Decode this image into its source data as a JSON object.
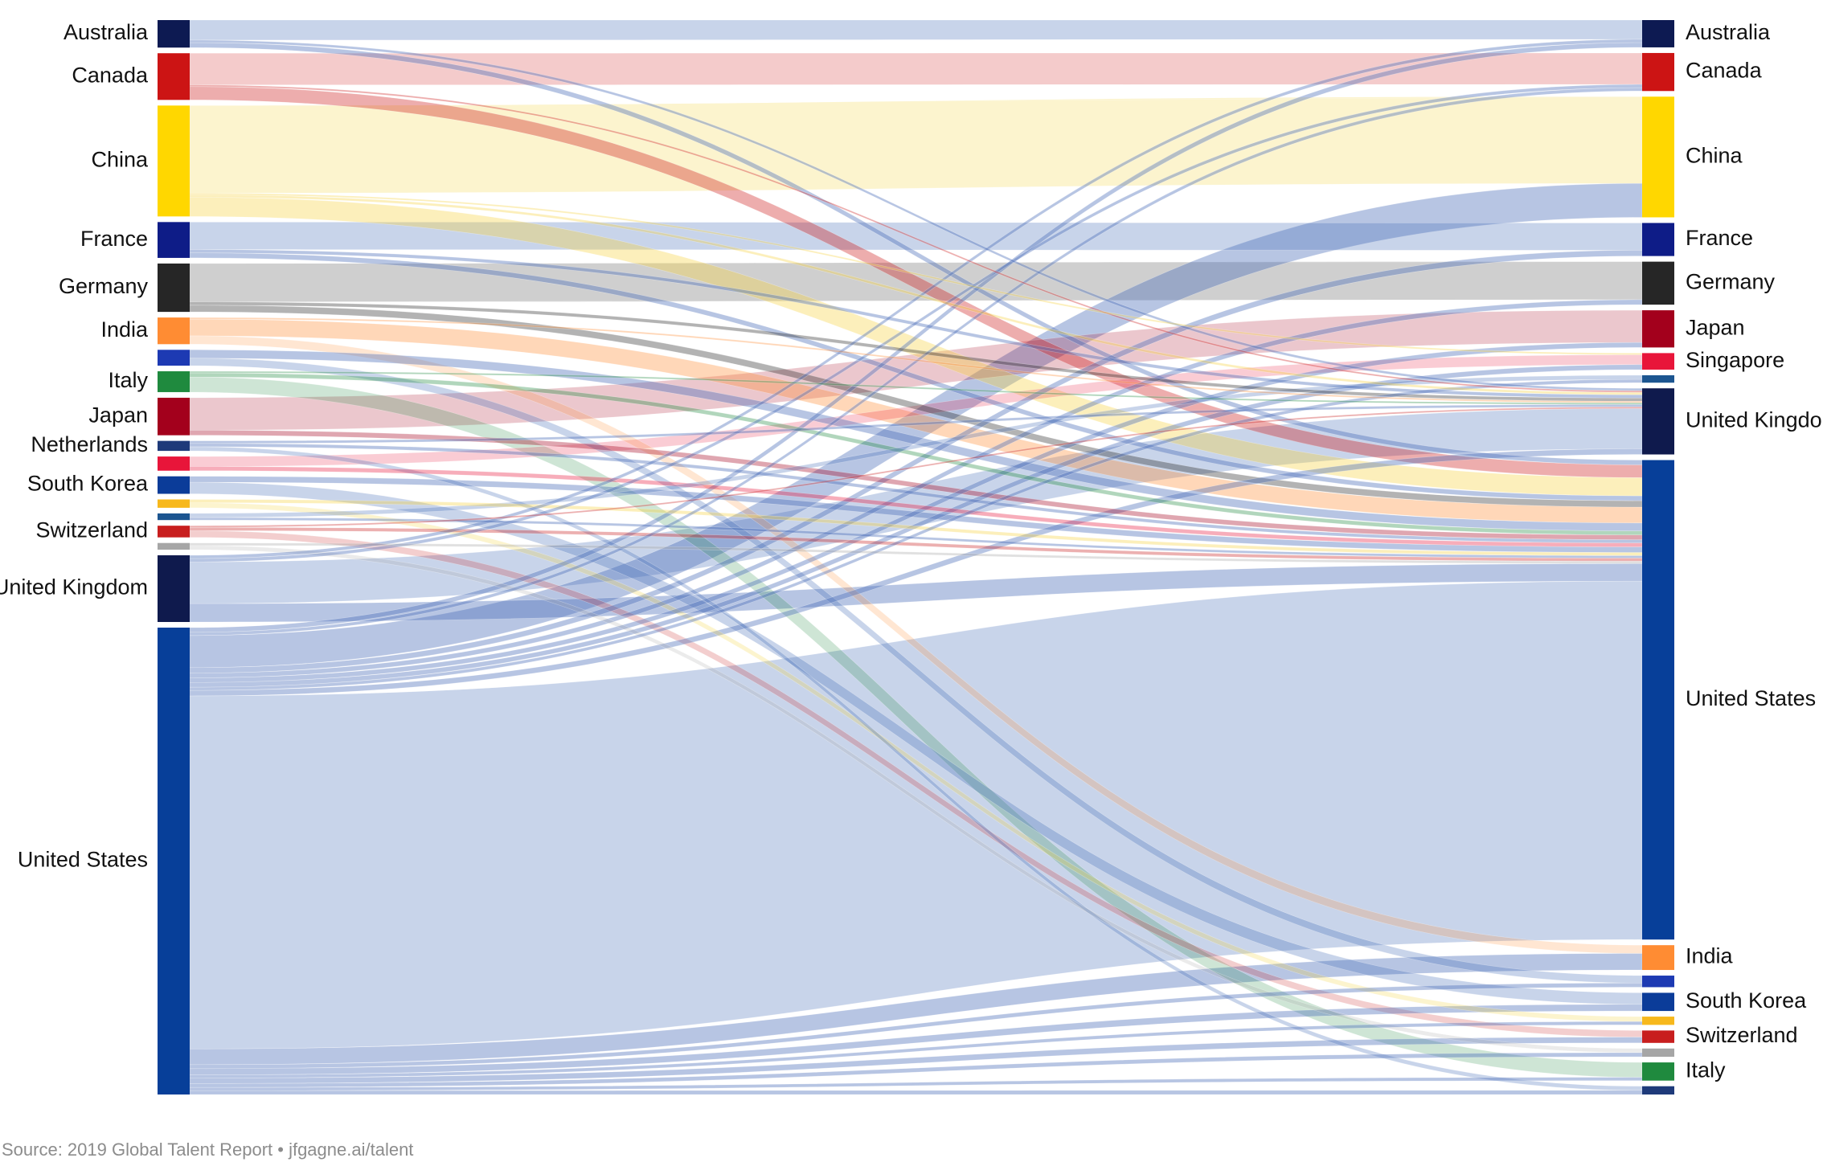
{
  "source_note": "Source: 2019 Global Talent Report • jfgagne.ai/talent",
  "diagram": {
    "type": "sankey",
    "left_nodes": [
      {
        "id": "L-australia",
        "label": "Australia",
        "value": 3.3,
        "color": "#0d1a52"
      },
      {
        "id": "L-canada",
        "label": "Canada",
        "value": 5.6,
        "color": "#cc1414"
      },
      {
        "id": "L-china",
        "label": "China",
        "value": 13.3,
        "color": "#ffd700"
      },
      {
        "id": "L-france",
        "label": "France",
        "value": 4.3,
        "color": "#0e1c87"
      },
      {
        "id": "L-germany",
        "label": "Germany",
        "value": 5.8,
        "color": "#262626"
      },
      {
        "id": "L-india",
        "label": "India",
        "value": 3.2,
        "color": "#ff8c33"
      },
      {
        "id": "L-blue1",
        "label": "",
        "value": 1.9,
        "color": "#1d3ab3"
      },
      {
        "id": "L-italy",
        "label": "Italy",
        "value": 2.5,
        "color": "#1f8a3e"
      },
      {
        "id": "L-japan",
        "label": "Japan",
        "value": 4.5,
        "color": "#a3001c"
      },
      {
        "id": "L-netherlands",
        "label": "Netherlands",
        "value": 1.2,
        "color": "#1e3a7a"
      },
      {
        "id": "L-singapore",
        "label": "",
        "value": 1.7,
        "color": "#e8153a"
      },
      {
        "id": "L-southkorea",
        "label": "South Korea",
        "value": 2.1,
        "color": "#0b3c99"
      },
      {
        "id": "L-yellow",
        "label": "",
        "value": 1.0,
        "color": "#f7b81c"
      },
      {
        "id": "L-blue2",
        "label": "",
        "value": 0.8,
        "color": "#1c5590"
      },
      {
        "id": "L-switzerland",
        "label": "Switzerland",
        "value": 1.4,
        "color": "#c81e1e"
      },
      {
        "id": "L-gray",
        "label": "",
        "value": 0.8,
        "color": "#a6a6a6"
      },
      {
        "id": "L-uk",
        "label": "United Kingdom",
        "value": 8.0,
        "color": "#0f1a4d"
      },
      {
        "id": "L-us",
        "label": "United States",
        "value": 56.0,
        "color": "#073f99"
      }
    ],
    "right_nodes": [
      {
        "id": "R-australia",
        "label": "Australia",
        "value": 3.3,
        "color": "#0d1a52"
      },
      {
        "id": "R-canada",
        "label": "Canada",
        "value": 4.6,
        "color": "#cc1414"
      },
      {
        "id": "R-china",
        "label": "China",
        "value": 14.6,
        "color": "#ffd700"
      },
      {
        "id": "R-france",
        "label": "France",
        "value": 4.0,
        "color": "#0e1c87"
      },
      {
        "id": "R-germany",
        "label": "Germany",
        "value": 5.2,
        "color": "#262626"
      },
      {
        "id": "R-japan",
        "label": "Japan",
        "value": 4.5,
        "color": "#a3001c"
      },
      {
        "id": "R-singapore",
        "label": "Singapore",
        "value": 2.0,
        "color": "#e8153a"
      },
      {
        "id": "R-blue2",
        "label": "",
        "value": 0.9,
        "color": "#1c5590"
      },
      {
        "id": "R-uk",
        "label": "United Kingdom",
        "value": 8.0,
        "color": "#0f1a4d"
      },
      {
        "id": "R-us",
        "label": "United States",
        "value": 58.0,
        "color": "#073f99"
      },
      {
        "id": "R-india",
        "label": "India",
        "value": 3.0,
        "color": "#ff8c33"
      },
      {
        "id": "R-blue1",
        "label": "",
        "value": 1.4,
        "color": "#1d3ab3"
      },
      {
        "id": "R-southkorea",
        "label": "South Korea",
        "value": 2.2,
        "color": "#0b3c99"
      },
      {
        "id": "R-yellow",
        "label": "",
        "value": 1.0,
        "color": "#f7b81c"
      },
      {
        "id": "R-switzerland",
        "label": "Switzerland",
        "value": 1.5,
        "color": "#c81e1e"
      },
      {
        "id": "R-gray",
        "label": "",
        "value": 1.0,
        "color": "#a6a6a6"
      },
      {
        "id": "R-italy",
        "label": "Italy",
        "value": 2.2,
        "color": "#1f8a3e"
      },
      {
        "id": "R-netherlands",
        "label": "",
        "value": 1.0,
        "color": "#1e3a7a"
      }
    ],
    "flows": [
      {
        "source": "L-australia",
        "target": "R-australia",
        "value": 2.4
      },
      {
        "source": "L-australia",
        "target": "R-us",
        "value": 0.6
      },
      {
        "source": "L-australia",
        "target": "R-uk",
        "value": 0.3
      },
      {
        "source": "L-canada",
        "target": "R-canada",
        "value": 3.8
      },
      {
        "source": "L-canada",
        "target": "R-us",
        "value": 1.6
      },
      {
        "source": "L-canada",
        "target": "R-uk",
        "value": 0.2
      },
      {
        "source": "L-china",
        "target": "R-china",
        "value": 10.5
      },
      {
        "source": "L-china",
        "target": "R-us",
        "value": 2.3
      },
      {
        "source": "L-china",
        "target": "R-uk",
        "value": 0.3
      },
      {
        "source": "L-china",
        "target": "R-singapore",
        "value": 0.2
      },
      {
        "source": "L-france",
        "target": "R-france",
        "value": 3.3
      },
      {
        "source": "L-france",
        "target": "R-us",
        "value": 0.6
      },
      {
        "source": "L-france",
        "target": "R-uk",
        "value": 0.4
      },
      {
        "source": "L-germany",
        "target": "R-germany",
        "value": 4.6
      },
      {
        "source": "L-germany",
        "target": "R-us",
        "value": 0.8
      },
      {
        "source": "L-germany",
        "target": "R-uk",
        "value": 0.4
      },
      {
        "source": "L-india",
        "target": "R-india",
        "value": 1.0
      },
      {
        "source": "L-india",
        "target": "R-us",
        "value": 2.0
      },
      {
        "source": "L-india",
        "target": "R-uk",
        "value": 0.2
      },
      {
        "source": "L-blue1",
        "target": "R-blue1",
        "value": 0.9
      },
      {
        "source": "L-blue1",
        "target": "R-us",
        "value": 1.0
      },
      {
        "source": "L-italy",
        "target": "R-italy",
        "value": 1.8
      },
      {
        "source": "L-italy",
        "target": "R-us",
        "value": 0.5
      },
      {
        "source": "L-italy",
        "target": "R-uk",
        "value": 0.2
      },
      {
        "source": "L-japan",
        "target": "R-japan",
        "value": 3.9
      },
      {
        "source": "L-japan",
        "target": "R-us",
        "value": 0.6
      },
      {
        "source": "L-netherlands",
        "target": "R-netherlands",
        "value": 0.5
      },
      {
        "source": "L-netherlands",
        "target": "R-us",
        "value": 0.4
      },
      {
        "source": "L-netherlands",
        "target": "R-uk",
        "value": 0.3
      },
      {
        "source": "L-singapore",
        "target": "R-singapore",
        "value": 1.2
      },
      {
        "source": "L-singapore",
        "target": "R-us",
        "value": 0.5
      },
      {
        "source": "L-southkorea",
        "target": "R-southkorea",
        "value": 1.4
      },
      {
        "source": "L-southkorea",
        "target": "R-us",
        "value": 0.7
      },
      {
        "source": "L-yellow",
        "target": "R-yellow",
        "value": 0.6
      },
      {
        "source": "L-yellow",
        "target": "R-us",
        "value": 0.4
      },
      {
        "source": "L-blue2",
        "target": "R-blue2",
        "value": 0.5
      },
      {
        "source": "L-blue2",
        "target": "R-us",
        "value": 0.3
      },
      {
        "source": "L-switzerland",
        "target": "R-switzerland",
        "value": 0.8
      },
      {
        "source": "L-switzerland",
        "target": "R-us",
        "value": 0.4
      },
      {
        "source": "L-switzerland",
        "target": "R-uk",
        "value": 0.2
      },
      {
        "source": "L-gray",
        "target": "R-gray",
        "value": 0.5
      },
      {
        "source": "L-gray",
        "target": "R-us",
        "value": 0.3
      },
      {
        "source": "L-uk",
        "target": "R-uk",
        "value": 5.0
      },
      {
        "source": "L-uk",
        "target": "R-us",
        "value": 2.2
      },
      {
        "source": "L-uk",
        "target": "R-australia",
        "value": 0.4
      },
      {
        "source": "L-uk",
        "target": "R-canada",
        "value": 0.4
      },
      {
        "source": "L-us",
        "target": "R-us",
        "value": 45.0
      },
      {
        "source": "L-us",
        "target": "R-china",
        "value": 4.1
      },
      {
        "source": "L-us",
        "target": "R-uk",
        "value": 0.7
      },
      {
        "source": "L-us",
        "target": "R-canada",
        "value": 0.4
      },
      {
        "source": "L-us",
        "target": "R-australia",
        "value": 0.6
      },
      {
        "source": "L-us",
        "target": "R-france",
        "value": 0.7
      },
      {
        "source": "L-us",
        "target": "R-germany",
        "value": 0.6
      },
      {
        "source": "L-us",
        "target": "R-japan",
        "value": 0.6
      },
      {
        "source": "L-us",
        "target": "R-singapore",
        "value": 0.6
      },
      {
        "source": "L-us",
        "target": "R-india",
        "value": 2.0
      },
      {
        "source": "L-us",
        "target": "R-blue1",
        "value": 0.5
      },
      {
        "source": "L-us",
        "target": "R-southkorea",
        "value": 0.8
      },
      {
        "source": "L-us",
        "target": "R-yellow",
        "value": 0.4
      },
      {
        "source": "L-us",
        "target": "R-blue2",
        "value": 0.4
      },
      {
        "source": "L-us",
        "target": "R-switzerland",
        "value": 0.7
      },
      {
        "source": "L-us",
        "target": "R-gray",
        "value": 0.5
      },
      {
        "source": "L-us",
        "target": "R-italy",
        "value": 0.4
      },
      {
        "source": "L-us",
        "target": "R-netherlands",
        "value": 0.5
      }
    ]
  }
}
